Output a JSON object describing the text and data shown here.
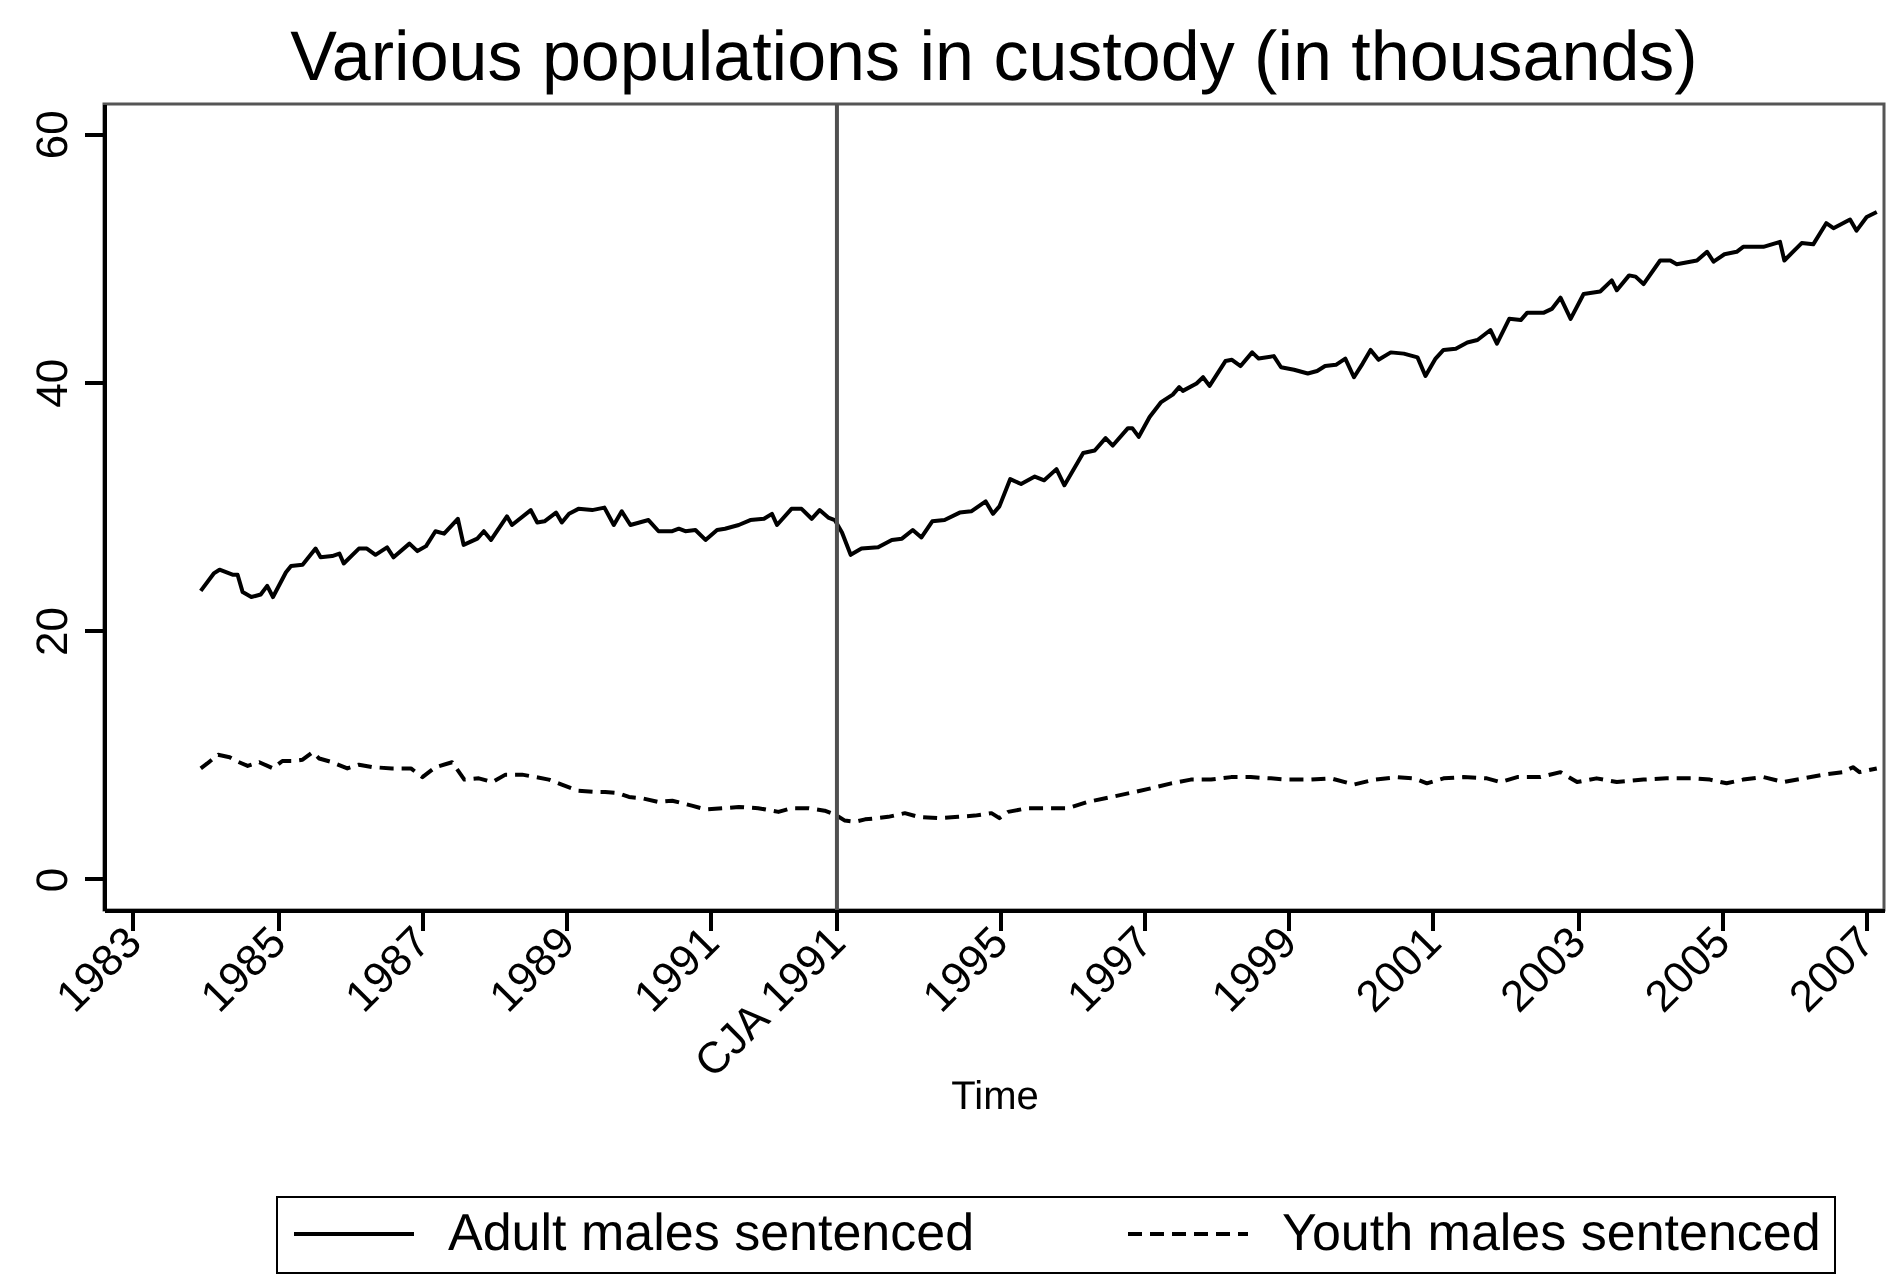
{
  "chart_data": {
    "type": "line",
    "title": "Various populations in custody (in thousands)",
    "xlabel": "Time",
    "xlim": [
      1982.6,
      2007.25
    ],
    "ylim": [
      -2.5,
      62.4
    ],
    "xticks": [
      1983,
      1985,
      1987,
      1989,
      1991,
      {
        "value": 1992.75,
        "label": "CJA 1991"
      },
      1995,
      1997,
      1999,
      2001,
      2003,
      2005,
      2007
    ],
    "yticks": [
      0,
      20,
      40,
      60
    ],
    "legend": "bottom",
    "ref_lines": [
      {
        "axis": "x",
        "value": 1992.75,
        "color": "#505050"
      }
    ],
    "series": [
      {
        "name": "Adult males sentenced",
        "color": "#000000",
        "line_style": "solid",
        "x": [
          1983.94,
          1984.12,
          1984.2,
          1984.38,
          1984.45,
          1984.52,
          1984.64,
          1984.77,
          1984.86,
          1984.94,
          1985.12,
          1985.19,
          1985.35,
          1985.53,
          1985.6,
          1985.76,
          1985.86,
          1985.92,
          1986.13,
          1986.24,
          1986.36,
          1986.52,
          1986.61,
          1986.83,
          1986.94,
          1987.06,
          1987.19,
          1987.31,
          1987.5,
          1987.58,
          1987.77,
          1987.86,
          1987.96,
          1988.18,
          1988.25,
          1988.51,
          1988.6,
          1988.7,
          1988.86,
          1988.94,
          1989.04,
          1989.17,
          1989.36,
          1989.53,
          1989.66,
          1989.77,
          1989.89,
          1990.14,
          1990.28,
          1990.47,
          1990.56,
          1990.65,
          1990.79,
          1990.93,
          1991.09,
          1991.2,
          1991.39,
          1991.55,
          1991.74,
          1991.85,
          1991.92,
          1992.12,
          1992.26,
          1992.4,
          1992.51,
          1992.63,
          1992.72,
          1992.82,
          1992.94,
          1993.09,
          1993.32,
          1993.51,
          1993.65,
          1993.8,
          1993.92,
          1994.07,
          1994.24,
          1994.45,
          1994.61,
          1994.81,
          1994.91,
          1995.0,
          1995.15,
          1995.3,
          1995.49,
          1995.62,
          1995.79,
          1995.9,
          1996.16,
          1996.32,
          1996.47,
          1996.57,
          1996.78,
          1996.84,
          1996.93,
          1997.08,
          1997.24,
          1997.4,
          1997.49,
          1997.54,
          1997.73,
          1997.82,
          1997.91,
          1998.13,
          1998.22,
          1998.34,
          1998.5,
          1998.59,
          1998.8,
          1998.9,
          1999.08,
          1999.27,
          1999.4,
          1999.51,
          1999.66,
          1999.79,
          1999.91,
          2000.03,
          2000.14,
          2000.25,
          2000.42,
          2000.6,
          2000.79,
          2000.9,
          2001.04,
          2001.15,
          2001.32,
          2001.48,
          2001.62,
          2001.8,
          2001.89,
          2002.06,
          2002.22,
          2002.31,
          2002.54,
          2002.65,
          2002.77,
          2002.91,
          2003.09,
          2003.32,
          2003.48,
          2003.55,
          2003.72,
          2003.81,
          2003.92,
          2004.15,
          2004.29,
          2004.38,
          2004.66,
          2004.8,
          2004.89,
          2005.04,
          2005.21,
          2005.3,
          2005.58,
          2005.81,
          2005.87,
          2006.11,
          2006.27,
          2006.45,
          2006.55,
          2006.78,
          2006.87,
          2007.01,
          2007.15
        ],
        "values": [
          23.2,
          24.6,
          24.9,
          24.5,
          24.5,
          23.1,
          22.7,
          22.9,
          23.6,
          22.7,
          24.7,
          25.2,
          25.3,
          26.6,
          25.9,
          26.0,
          26.2,
          25.4,
          26.6,
          26.6,
          26.1,
          26.7,
          25.9,
          27.0,
          26.4,
          26.8,
          28.0,
          27.8,
          29.0,
          26.9,
          27.4,
          28.0,
          27.3,
          29.2,
          28.5,
          29.7,
          28.7,
          28.8,
          29.5,
          28.7,
          29.4,
          29.8,
          29.7,
          29.9,
          28.5,
          29.6,
          28.5,
          28.9,
          28.0,
          28.0,
          28.2,
          28.0,
          28.1,
          27.3,
          28.1,
          28.2,
          28.5,
          28.9,
          29.0,
          29.4,
          28.5,
          29.8,
          29.8,
          29.0,
          29.7,
          29.1,
          28.9,
          27.9,
          26.1,
          26.6,
          26.7,
          27.3,
          27.4,
          28.1,
          27.5,
          28.8,
          28.9,
          29.5,
          29.6,
          30.4,
          29.4,
          30.0,
          32.2,
          31.8,
          32.4,
          32.1,
          33.0,
          31.7,
          34.3,
          34.5,
          35.5,
          34.9,
          36.3,
          36.3,
          35.6,
          37.2,
          38.4,
          39.0,
          39.6,
          39.3,
          39.9,
          40.4,
          39.7,
          41.7,
          41.8,
          41.3,
          42.4,
          41.9,
          42.1,
          41.2,
          41.0,
          40.7,
          40.9,
          41.3,
          41.4,
          41.9,
          40.4,
          41.5,
          42.6,
          41.8,
          42.4,
          42.3,
          42.0,
          40.5,
          41.9,
          42.6,
          42.7,
          43.2,
          43.4,
          44.2,
          43.1,
          45.1,
          45.0,
          45.6,
          45.6,
          45.9,
          46.8,
          45.1,
          47.1,
          47.3,
          48.2,
          47.4,
          48.6,
          48.5,
          47.9,
          49.8,
          49.8,
          49.5,
          49.8,
          50.5,
          49.7,
          50.3,
          50.5,
          50.9,
          50.9,
          51.3,
          49.8,
          51.2,
          51.1,
          52.8,
          52.4,
          53.1,
          52.2,
          53.3,
          53.7
        ]
      },
      {
        "name": "Youth males sentenced",
        "color": "#000000",
        "line_style": "dashed",
        "x": [
          1983.94,
          1984.03,
          1984.18,
          1984.34,
          1984.43,
          1984.59,
          1984.75,
          1984.94,
          1985.07,
          1985.21,
          1985.35,
          1985.49,
          1985.58,
          1985.76,
          1985.97,
          1986.13,
          1986.32,
          1986.59,
          1986.85,
          1987.01,
          1987.19,
          1987.42,
          1987.59,
          1987.79,
          1987.98,
          1988.16,
          1988.39,
          1988.58,
          1988.76,
          1988.94,
          1989.17,
          1989.41,
          1989.54,
          1989.73,
          1989.87,
          1990.05,
          1990.28,
          1990.47,
          1990.74,
          1990.93,
          1991.2,
          1991.39,
          1991.66,
          1991.94,
          1992.12,
          1992.35,
          1992.58,
          1992.72,
          1992.86,
          1993.0,
          1993.14,
          1993.32,
          1993.46,
          1993.69,
          1993.88,
          1994.15,
          1994.43,
          1994.66,
          1994.89,
          1995.0,
          1995.12,
          1995.39,
          1995.67,
          1995.95,
          1996.22,
          1996.55,
          1996.87,
          1997.1,
          1997.38,
          1997.65,
          1997.93,
          1998.21,
          1998.48,
          1998.76,
          1998.99,
          1999.31,
          1999.59,
          1999.91,
          2000.19,
          2000.51,
          2000.74,
          2000.92,
          2001.15,
          2001.43,
          2001.75,
          2001.94,
          2002.17,
          2002.49,
          2002.77,
          2003.0,
          2003.27,
          2003.55,
          2003.92,
          2004.24,
          2004.61,
          2004.84,
          2005.07,
          2005.3,
          2005.58,
          2005.86,
          2006.13,
          2006.41,
          2006.68,
          2006.82,
          2006.91,
          2007.15
        ],
        "values": [
          8.9,
          9.3,
          10.0,
          9.8,
          9.5,
          9.1,
          9.4,
          8.9,
          9.5,
          9.5,
          9.6,
          10.2,
          9.7,
          9.4,
          8.9,
          9.2,
          9.0,
          8.9,
          8.9,
          8.2,
          9.0,
          9.4,
          8.0,
          8.1,
          7.8,
          8.4,
          8.4,
          8.2,
          8.0,
          7.6,
          7.1,
          7.0,
          7.0,
          6.9,
          6.6,
          6.5,
          6.2,
          6.3,
          5.9,
          5.6,
          5.7,
          5.8,
          5.7,
          5.4,
          5.7,
          5.7,
          5.5,
          5.2,
          4.7,
          4.6,
          4.8,
          4.9,
          5.0,
          5.3,
          5.0,
          4.9,
          5.0,
          5.1,
          5.3,
          4.9,
          5.4,
          5.7,
          5.7,
          5.7,
          6.2,
          6.6,
          7.0,
          7.3,
          7.7,
          8.0,
          8.0,
          8.2,
          8.2,
          8.1,
          8.0,
          8.0,
          8.1,
          7.6,
          8.0,
          8.2,
          8.1,
          7.7,
          8.1,
          8.2,
          8.1,
          7.8,
          8.2,
          8.2,
          8.6,
          7.8,
          8.1,
          7.8,
          8.0,
          8.1,
          8.1,
          8.0,
          7.7,
          8.0,
          8.2,
          7.8,
          8.1,
          8.4,
          8.6,
          9.0,
          8.6,
          8.9
        ]
      }
    ]
  }
}
